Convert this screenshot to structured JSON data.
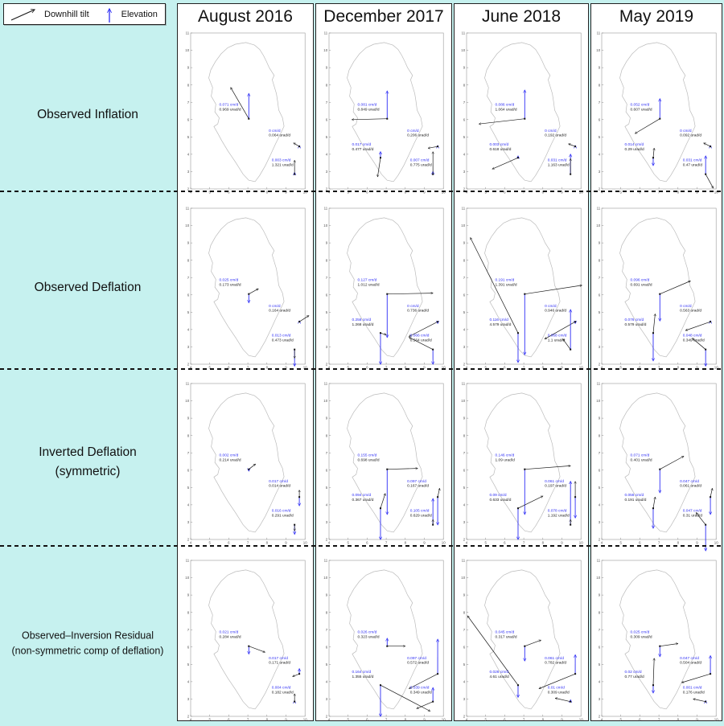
{
  "legend": {
    "tilt_label": "Downhill tilt",
    "elevation_label": "Elevation"
  },
  "columns": [
    "August 2016",
    "December 2017",
    "June 2018",
    "May 2019"
  ],
  "rows": [
    {
      "label_lines": [
        "Observed Inflation"
      ]
    },
    {
      "label_lines": [
        "Observed Deflation"
      ]
    },
    {
      "label_lines": [
        "Inverted Deflation",
        "(symmetric)"
      ]
    },
    {
      "label_lines": [
        "Observed–Inversion Residual",
        "(non-symmetric comp of deflation)"
      ]
    }
  ],
  "colors": {
    "background": "#c6f1ef",
    "elevation_blue": "#2e2ef5",
    "tilt_black": "#1a1a1a",
    "outline_gray": "#bbbbbb",
    "panel_border": "#222222"
  },
  "chart_data": {
    "type": "scatter",
    "title": "",
    "xlabel": "",
    "ylabel": "",
    "xlim": [
      4,
      10
    ],
    "ylim": [
      2,
      11
    ],
    "x_ticks": [
      4,
      5,
      6,
      7,
      8,
      9,
      10
    ],
    "y_ticks": [
      2,
      3,
      4,
      5,
      6,
      7,
      8,
      9,
      10,
      11
    ],
    "units": {
      "elevation": "cm/d",
      "tilt": "urad/d"
    },
    "legend_position": "top-left",
    "grid": false,
    "station_positions": {
      "S1": [
        7.05,
        6.05
      ],
      "S2": [
        6.7,
        3.8
      ],
      "S3": [
        9.7,
        4.45
      ],
      "S4": [
        9.45,
        2.85
      ]
    },
    "label_anchors": {
      "S1": [
        5.5,
        6.8
      ],
      "S2": [
        5.2,
        4.5
      ],
      "S3": [
        8.1,
        5.3
      ],
      "S4": [
        8.25,
        3.6
      ]
    },
    "outline": [
      [
        6.9,
        10.45
      ],
      [
        6.35,
        10.35
      ],
      [
        5.95,
        10.15
      ],
      [
        5.6,
        9.8
      ],
      [
        5.3,
        9.35
      ],
      [
        5.05,
        8.85
      ],
      [
        4.95,
        8.4
      ],
      [
        5.15,
        7.85
      ],
      [
        5.08,
        7.35
      ],
      [
        5.32,
        6.9
      ],
      [
        5.27,
        6.45
      ],
      [
        5.5,
        6.1
      ],
      [
        5.42,
        5.75
      ],
      [
        5.22,
        5.6
      ],
      [
        5.45,
        5.15
      ],
      [
        5.62,
        4.8
      ],
      [
        5.95,
        4.2
      ],
      [
        6.35,
        3.55
      ],
      [
        6.75,
        2.85
      ],
      [
        7.05,
        2.5
      ],
      [
        7.38,
        2.42
      ],
      [
        7.62,
        2.78
      ],
      [
        7.92,
        3.35
      ],
      [
        8.18,
        3.95
      ],
      [
        8.45,
        4.6
      ],
      [
        8.72,
        5.2
      ],
      [
        8.9,
        5.62
      ],
      [
        8.82,
        6.1
      ],
      [
        8.62,
        6.55
      ],
      [
        8.56,
        7.05
      ],
      [
        8.5,
        7.5
      ],
      [
        8.28,
        8.3
      ],
      [
        8.38,
        8.55
      ],
      [
        8.12,
        9.0
      ],
      [
        7.98,
        9.35
      ],
      [
        7.82,
        9.7
      ],
      [
        7.62,
        10.05
      ],
      [
        7.35,
        10.3
      ]
    ],
    "cells": [
      {
        "r": 0,
        "c": 0,
        "stations": [
          {
            "id": "S1",
            "cm": "0.071",
            "ur": "0.969",
            "t": [
              -0.95,
              1.8
            ],
            "e": [
              0,
              1.45
            ]
          },
          {
            "id": "S3",
            "cm": "0",
            "ur": "0.064",
            "t": [
              -0.3,
              0.2
            ],
            "e": [
              0,
              0.05
            ]
          },
          {
            "id": "S4",
            "cm": "0.003",
            "ur": "1.321",
            "t": [
              0,
              0.8
            ],
            "e": [
              0,
              0.1
            ]
          }
        ]
      },
      {
        "r": 0,
        "c": 1,
        "stations": [
          {
            "id": "S1",
            "cm": "0.081",
            "ur": "0.849",
            "t": [
              -1.85,
              -0.05
            ],
            "e": [
              0,
              1.6
            ]
          },
          {
            "id": "S2",
            "cm": "0.017",
            "ur": "0.477",
            "t": [
              -0.15,
              -1.1
            ],
            "e": [
              0,
              0.35
            ]
          },
          {
            "id": "S3",
            "cm": "0",
            "ur": "0.206",
            "t": [
              -0.5,
              -0.1
            ],
            "e": [
              0,
              0.05
            ]
          },
          {
            "id": "S4",
            "cm": "0.007",
            "ur": "0.775",
            "t": [
              0,
              1.3
            ],
            "e": [
              0,
              0.15
            ]
          }
        ]
      },
      {
        "r": 0,
        "c": 2,
        "stations": [
          {
            "id": "S1",
            "cm": "0.086",
            "ur": "1.064",
            "t": [
              -2.4,
              -0.3
            ],
            "e": [
              0,
              1.65
            ]
          },
          {
            "id": "S2",
            "cm": "0.003",
            "ur": "0.618",
            "t": [
              -1.35,
              -0.65
            ],
            "e": [
              0,
              0.1
            ]
          },
          {
            "id": "S3",
            "cm": "0",
            "ur": "0.192",
            "t": [
              -0.35,
              0.15
            ],
            "e": [
              0,
              0.05
            ]
          },
          {
            "id": "S4",
            "cm": "0.031",
            "ur": "1.163",
            "t": [
              0,
              0.9
            ],
            "e": [
              0,
              1.15
            ]
          }
        ]
      },
      {
        "r": 0,
        "c": 3,
        "stations": [
          {
            "id": "S1",
            "cm": "0.052",
            "ur": "0.607",
            "t": [
              -1.3,
              -0.85
            ],
            "e": [
              0,
              1.15
            ]
          },
          {
            "id": "S2",
            "cm": "0.014",
            "ur": "0.29",
            "t": [
              0.05,
              0.55
            ],
            "e": [
              0,
              -0.45
            ]
          },
          {
            "id": "S3",
            "cm": "0",
            "ur": "0.092",
            "t": [
              -0.35,
              0.2
            ],
            "e": [
              0,
              0.05
            ]
          },
          {
            "id": "S4",
            "cm": "0.031",
            "ur": "0.47",
            "t": [
              0.4,
              -0.8
            ],
            "e": [
              0,
              1.05
            ]
          }
        ]
      },
      {
        "r": 1,
        "c": 0,
        "stations": [
          {
            "id": "S1",
            "cm": "0.025",
            "ur": "0.173",
            "t": [
              0.5,
              0.3
            ],
            "e": [
              0,
              -0.5
            ]
          },
          {
            "id": "S3",
            "cm": "0",
            "ur": "0.164",
            "t": [
              0.5,
              0.35
            ],
            "e": [
              0,
              0.05
            ]
          },
          {
            "id": "S4",
            "cm": "0.013",
            "ur": "0.473",
            "t": [
              0,
              -0.5
            ],
            "e": [
              0,
              -0.95
            ]
          }
        ]
      },
      {
        "r": 1,
        "c": 1,
        "stations": [
          {
            "id": "S1",
            "cm": "0.127",
            "ur": "1.012",
            "t": [
              2.4,
              0.05
            ],
            "e": [
              0,
              -2.5
            ]
          },
          {
            "id": "S2",
            "cm": "0.258",
            "ur": "1.268",
            "t": [
              0.3,
              -0.1
            ],
            "e": [
              0,
              -1.8
            ]
          },
          {
            "id": "S3",
            "cm": "0",
            "ur": "0.736",
            "t": [
              -1.5,
              -0.85
            ],
            "e": [
              0,
              -0.1
            ]
          },
          {
            "id": "S4",
            "cm": "0.066",
            "ur": "0.564",
            "t": [
              -1.25,
              0.7
            ],
            "e": [
              0,
              -0.85
            ]
          }
        ]
      },
      {
        "r": 1,
        "c": 2,
        "stations": [
          {
            "id": "S1",
            "cm": "0.191",
            "ur": "1.391",
            "t": [
              3.0,
              0.5
            ],
            "e": [
              0,
              -3.5
            ]
          },
          {
            "id": "S2",
            "cm": "0.116",
            "ur": "4.579",
            "t": [
              -2.5,
              5.5
            ],
            "e": [
              0,
              -1.7
            ]
          },
          {
            "id": "S3",
            "cm": "0",
            "ur": "0.946",
            "t": [
              -1.6,
              -1.0
            ],
            "e": [
              0,
              -0.1
            ]
          },
          {
            "id": "S4",
            "cm": "0.068",
            "ur": "1.1",
            "t": [
              -0.4,
              0.6
            ],
            "e": [
              0,
              2.3
            ]
          }
        ]
      },
      {
        "r": 1,
        "c": 3,
        "stations": [
          {
            "id": "S1",
            "cm": "0.096",
            "ur": "0.691",
            "t": [
              1.6,
              0.75
            ],
            "e": [
              0,
              -1.55
            ]
          },
          {
            "id": "S2",
            "cm": "0.076",
            "ur": "0.579",
            "t": [
              0.1,
              1.1
            ],
            "e": [
              0,
              -1.6
            ]
          },
          {
            "id": "S3",
            "cm": "0",
            "ur": "0.563",
            "t": [
              -1.3,
              -0.5
            ],
            "e": [
              0,
              0.05
            ]
          },
          {
            "id": "S4",
            "cm": "0.048",
            "ur": "0.349",
            "t": [
              -0.7,
              0.65
            ],
            "e": [
              0,
              -0.95
            ]
          }
        ]
      },
      {
        "r": 2,
        "c": 0,
        "stations": [
          {
            "id": "S1",
            "cm": "0.002",
            "ur": "0.214",
            "t": [
              0.35,
              0.3
            ],
            "e": [
              0,
              -0.1
            ]
          },
          {
            "id": "S3",
            "cm": "0.017",
            "ur": "0.014",
            "t": [
              0,
              0.4
            ],
            "e": [
              0,
              -0.5
            ]
          },
          {
            "id": "S4",
            "cm": "0.016",
            "ur": "0.291",
            "t": [
              0,
              -0.35
            ],
            "e": [
              0,
              -0.55
            ]
          }
        ]
      },
      {
        "r": 2,
        "c": 1,
        "stations": [
          {
            "id": "S1",
            "cm": "0.155",
            "ur": "0.698",
            "t": [
              1.6,
              0.05
            ],
            "e": [
              0,
              -2.6
            ]
          },
          {
            "id": "S2",
            "cm": "0.094",
            "ur": "0.367",
            "t": [
              0.25,
              0.85
            ],
            "e": [
              0,
              -1.8
            ]
          },
          {
            "id": "S3",
            "cm": "0.097",
            "ur": "0.167",
            "t": [
              0.1,
              0.5
            ],
            "e": [
              0,
              -1.6
            ]
          },
          {
            "id": "S4",
            "cm": "0.105",
            "ur": "0.629",
            "t": [
              0,
              0.3
            ],
            "e": [
              0,
              1.5
            ]
          }
        ]
      },
      {
        "r": 2,
        "c": 2,
        "stations": [
          {
            "id": "S1",
            "cm": "0.146",
            "ur": "1.09",
            "t": [
              2.4,
              0.2
            ],
            "e": [
              0,
              -2.6
            ]
          },
          {
            "id": "S2",
            "cm": "0.09",
            "ur": "0.633",
            "t": [
              1.3,
              0.7
            ],
            "e": [
              0,
              -1.8
            ]
          },
          {
            "id": "S3",
            "cm": "0.061",
            "ur": "0.197",
            "t": [
              0,
              0.9
            ],
            "e": [
              0,
              -1.2
            ]
          },
          {
            "id": "S4",
            "cm": "0.078",
            "ur": "1.192",
            "t": [
              0,
              0.3
            ],
            "e": [
              0,
              2.5
            ]
          }
        ]
      },
      {
        "r": 2,
        "c": 3,
        "stations": [
          {
            "id": "S1",
            "cm": "0.071",
            "ur": "0.401",
            "t": [
              1.25,
              0.75
            ],
            "e": [
              0,
              -1.35
            ]
          },
          {
            "id": "S2",
            "cm": "0.056",
            "ur": "0.191",
            "t": [
              0.1,
              0.65
            ],
            "e": [
              0,
              -1.15
            ]
          },
          {
            "id": "S3",
            "cm": "0.047",
            "ur": "0.061",
            "t": [
              0.1,
              0.5
            ],
            "e": [
              0,
              -1.0
            ]
          },
          {
            "id": "S4",
            "cm": "0.047",
            "ur": "0.31",
            "t": [
              -0.5,
              0.7
            ],
            "e": [
              0,
              -1.5
            ]
          }
        ]
      },
      {
        "r": 3,
        "c": 0,
        "stations": [
          {
            "id": "S1",
            "cm": "0.021",
            "ur": "0.284",
            "t": [
              0.85,
              -0.35
            ],
            "e": [
              0,
              -0.45
            ]
          },
          {
            "id": "S3",
            "cm": "0.017",
            "ur": "0.171",
            "t": [
              -0.35,
              -0.15
            ],
            "e": [
              0,
              0.3
            ]
          },
          {
            "id": "S4",
            "cm": "0.004",
            "ur": "0.182",
            "t": [
              0,
              0.45
            ],
            "e": [
              0,
              0.05
            ]
          }
        ]
      },
      {
        "r": 3,
        "c": 1,
        "stations": [
          {
            "id": "S1",
            "cm": "0.026",
            "ur": "0.323",
            "t": [
              0.95,
              0
            ],
            "e": [
              0,
              0.45
            ]
          },
          {
            "id": "S2",
            "cm": "0.164",
            "ur": "1.355",
            "t": [
              2.6,
              -1.5
            ],
            "e": [
              0,
              -1.8
            ]
          },
          {
            "id": "S3",
            "cm": "0.097",
            "ur": "0.572",
            "t": [
              -1.5,
              -0.85
            ],
            "e": [
              0,
              2.0
            ]
          },
          {
            "id": "S4",
            "cm": "0.039",
            "ur": "0.349",
            "t": [
              -0.85,
              -0.4
            ],
            "e": [
              0,
              0.8
            ]
          }
        ]
      },
      {
        "r": 3,
        "c": 2,
        "stations": [
          {
            "id": "S1",
            "cm": "0.045",
            "ur": "0.317",
            "t": [
              0.85,
              0.35
            ],
            "e": [
              0,
              -0.85
            ]
          },
          {
            "id": "S2",
            "cm": "0.026",
            "ur": "4.61",
            "t": [
              -2.65,
              4.0
            ],
            "e": [
              0,
              -0.7
            ]
          },
          {
            "id": "S3",
            "cm": "0.061",
            "ur": "0.782",
            "t": [
              -1.9,
              -0.85
            ],
            "e": [
              0,
              1.1
            ]
          },
          {
            "id": "S4",
            "cm": "0.01",
            "ur": "0.309",
            "t": [
              -0.8,
              0.2
            ],
            "e": [
              0,
              0.1
            ]
          }
        ]
      },
      {
        "r": 3,
        "c": 3,
        "stations": [
          {
            "id": "S1",
            "cm": "0.025",
            "ur": "0.309",
            "t": [
              0.95,
              0.15
            ],
            "e": [
              0,
              -0.6
            ]
          },
          {
            "id": "S2",
            "cm": "0.02",
            "ur": "0.77",
            "t": [
              0.05,
              1.55
            ],
            "e": [
              0,
              -0.45
            ]
          },
          {
            "id": "S3",
            "cm": "0.047",
            "ur": "0.504",
            "t": [
              -1.5,
              -0.5
            ],
            "e": [
              0,
              1.05
            ]
          },
          {
            "id": "S4",
            "cm": "0.001",
            "ur": "0.176",
            "t": [
              -0.65,
              0.15
            ],
            "e": [
              0,
              0.05
            ]
          }
        ]
      }
    ]
  }
}
